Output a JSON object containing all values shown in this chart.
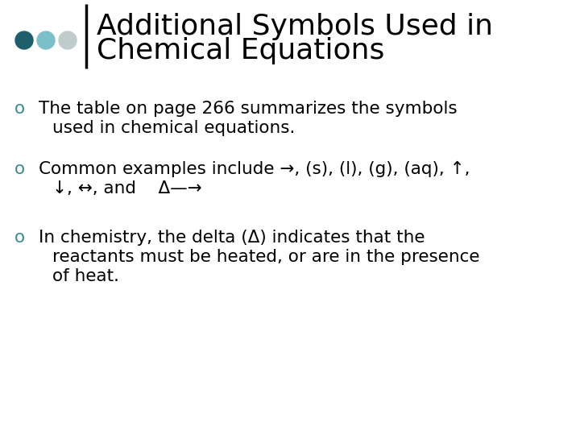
{
  "background_color": "#ffffff",
  "title_line1": "Additional Symbols Used in",
  "title_line2": "Chemical Equations",
  "title_fontsize": 26,
  "title_color": "#000000",
  "bar_color": "#000000",
  "dot_colors": [
    "#1d5f6a",
    "#7bbfc9",
    "#c0cccc"
  ],
  "bullet_color": "#3a8a96",
  "body_fontsize": 15.5,
  "body_color": "#000000",
  "bullets": [
    {
      "lines": [
        "The table on page 266 summarizes the symbols",
        "used in chemical equations."
      ]
    },
    {
      "lines": [
        "Common examples include →, (s), (l), (g), (aq), ↑,",
        "↓, ↔, and    Δ—→"
      ]
    },
    {
      "lines": [
        "In chemistry, the delta (Δ) indicates that the",
        "reactants must be heated, or are in the presence",
        "of heat."
      ]
    }
  ]
}
